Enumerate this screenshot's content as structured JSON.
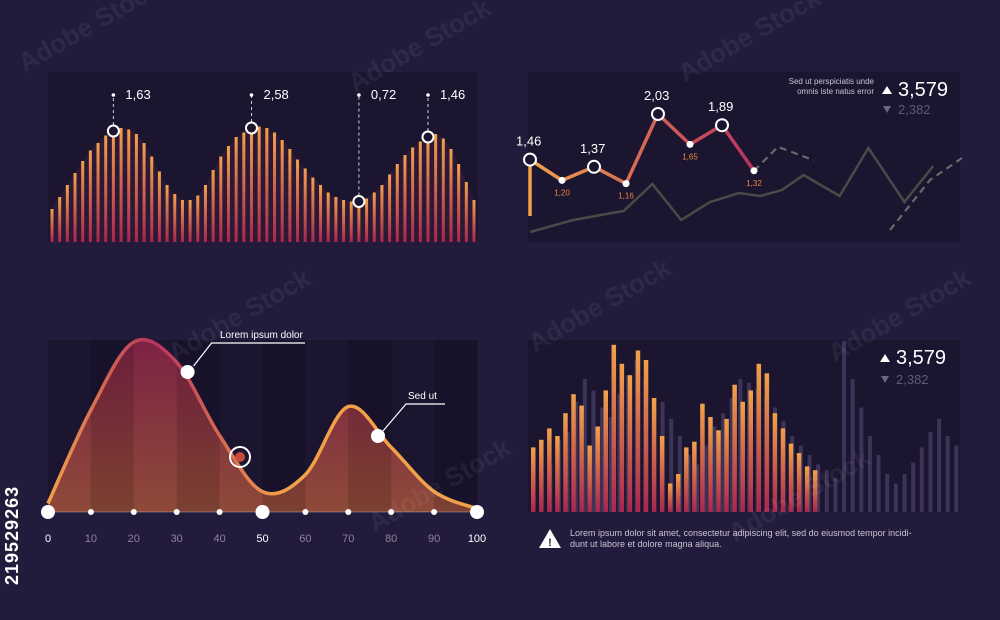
{
  "stock_id": "219529263",
  "watermark": "Adobe Stock",
  "colors": {
    "background": "#231b3b",
    "panel": "#1b1530",
    "orange": "#f2a14a",
    "magenta": "#b8315e",
    "gray": "#4a4a48",
    "white": "#ffffff"
  },
  "chart_data": [
    {
      "type": "bar",
      "name": "top-left-stripe-area",
      "values": [
        0.22,
        0.3,
        0.38,
        0.46,
        0.54,
        0.61,
        0.66,
        0.71,
        0.74,
        0.76,
        0.75,
        0.72,
        0.66,
        0.57,
        0.47,
        0.38,
        0.32,
        0.28,
        0.28,
        0.31,
        0.38,
        0.48,
        0.57,
        0.64,
        0.7,
        0.73,
        0.76,
        0.77,
        0.76,
        0.73,
        0.68,
        0.62,
        0.55,
        0.49,
        0.43,
        0.38,
        0.33,
        0.3,
        0.28,
        0.27,
        0.27,
        0.29,
        0.33,
        0.38,
        0.45,
        0.52,
        0.58,
        0.63,
        0.67,
        0.7,
        0.72,
        0.69,
        0.62,
        0.52,
        0.4,
        0.28
      ],
      "annotations": [
        {
          "label": "1,63",
          "index": 8
        },
        {
          "label": "2,58",
          "index": 26
        },
        {
          "label": "0,72",
          "index": 40
        },
        {
          "label": "1,46",
          "index": 49
        }
      ]
    },
    {
      "type": "line",
      "name": "top-right-line",
      "ylim": [
        0,
        2.4
      ],
      "series": [
        {
          "role": "main",
          "x": [
            0,
            1,
            2,
            3,
            4,
            5,
            6,
            7,
            8
          ],
          "values": [
            1.46,
            1.2,
            1.37,
            1.16,
            2.03,
            1.65,
            1.89,
            1.32,
            null
          ]
        },
        {
          "role": "dashed",
          "x": [
            7,
            7.6,
            8.5
          ],
          "values": [
            1.32,
            1.62,
            1.45
          ]
        },
        {
          "role": "background",
          "x": [
            0,
            1.2,
            2.6,
            3.4,
            4.2,
            5,
            5.8,
            6.4,
            7,
            7.6,
            8.6,
            9.4,
            10.4,
            11.2
          ],
          "values": [
            0.1,
            0.3,
            0.45,
            0.9,
            0.3,
            0.6,
            0.75,
            0.7,
            0.8,
            1.05,
            0.7,
            1.5,
            0.6,
            1.2
          ]
        }
      ],
      "point_labels_large": [
        "1,46",
        "1,37",
        "2,03",
        "1,89"
      ],
      "point_labels_small": [
        "1,20",
        "1,16",
        "1,65",
        "1,32"
      ]
    },
    {
      "type": "area",
      "name": "bottom-left-area",
      "x": [
        0,
        10,
        20,
        30,
        40,
        50,
        60,
        70,
        80,
        90,
        100
      ],
      "xticks": [
        "0",
        "10",
        "20",
        "30",
        "40",
        "50",
        "60",
        "70",
        "80",
        "90",
        "100"
      ],
      "xlim": [
        0,
        100
      ],
      "values": [
        0.05,
        0.6,
        1.0,
        0.88,
        0.45,
        0.12,
        0.22,
        0.62,
        0.38,
        0.12,
        0.02
      ],
      "annotations": [
        {
          "label": "Lorem ipsum dolor",
          "x": 33
        },
        {
          "label": "Sed ut",
          "x": 77
        }
      ]
    },
    {
      "type": "bar",
      "name": "bottom-right-bars",
      "bright_values": [
        0.34,
        0.38,
        0.44,
        0.4,
        0.52,
        0.62,
        0.56,
        0.35,
        0.45,
        0.64,
        0.88,
        0.78,
        0.72,
        0.85,
        0.8,
        0.6,
        0.4,
        0.15,
        0.2,
        0.34,
        0.37,
        0.57,
        0.5,
        0.43,
        0.49,
        0.67,
        0.58,
        0.64,
        0.78,
        0.73,
        0.52,
        0.44,
        0.36,
        0.31,
        0.24,
        0.22
      ],
      "dim_values": [
        0.3,
        0.2,
        0.25,
        0.38,
        0.42,
        0.58,
        0.7,
        0.64,
        0.55,
        0.5,
        0.62,
        0.72,
        0.8,
        0.7,
        0.6,
        0.58,
        0.49,
        0.4,
        0.3,
        0.25,
        0.35,
        0.45,
        0.52,
        0.6,
        0.7,
        0.68,
        0.65,
        0.6,
        0.55,
        0.48,
        0.4,
        0.35,
        0.3,
        0.25,
        0.22,
        0.18,
        0.9,
        0.7,
        0.55,
        0.4,
        0.3,
        0.2,
        0.15,
        0.2,
        0.26,
        0.34,
        0.42,
        0.49,
        0.4,
        0.35
      ]
    }
  ],
  "top_right_stats": {
    "caption_line1": "Sed ut perspiciatis unde",
    "caption_line2": "omnis iste natus error",
    "up_value": "3,579",
    "down_value": "2,382"
  },
  "bottom_right_stats": {
    "up_value": "3,579",
    "down_value": "2,382"
  },
  "warning": {
    "line1": "Lorem ipsum dolor sit amet, consectetur adipiscing elit, sed do eiusmod tempor incidi-",
    "line2": "dunt ut labore et dolore magna aliqua."
  }
}
